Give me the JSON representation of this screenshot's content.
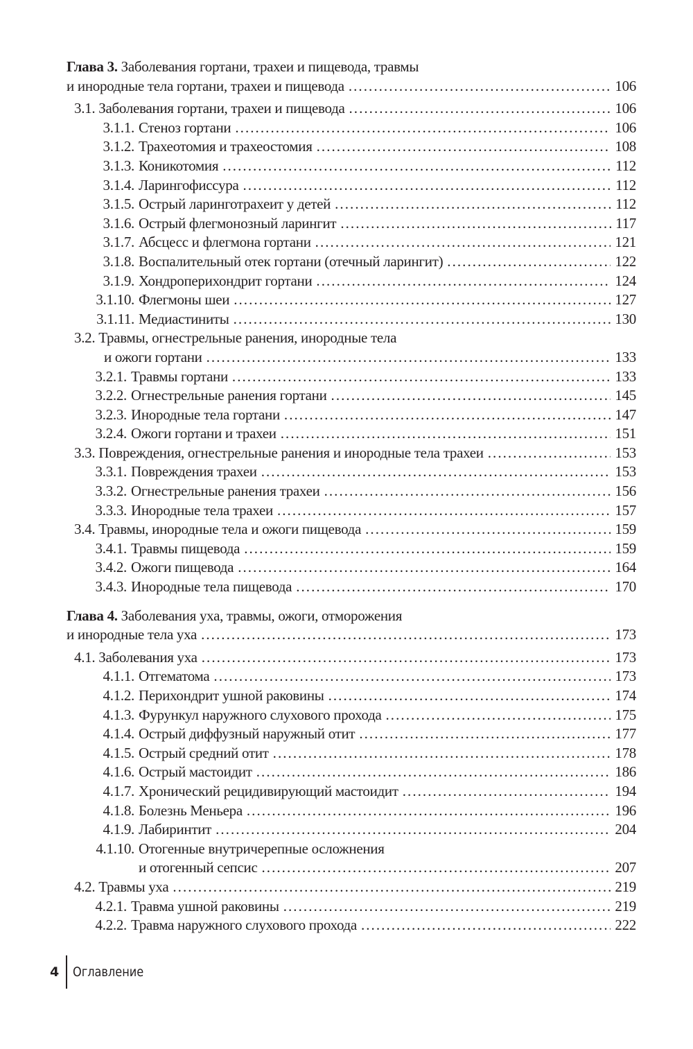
{
  "chapters": [
    {
      "label": "Глава 3.",
      "title_line1": "Заболевания гортани, трахеи и пищевода, травмы",
      "title_line2": "и инородные тела гортани, трахеи и пищевода",
      "page": "106",
      "sections": [
        {
          "num": "3.1.",
          "title": "Заболевания гортани, трахеи и пищевода",
          "page": "106",
          "items": [
            {
              "num": "3.1.1.",
              "title": "Стеноз гортани",
              "page": "106"
            },
            {
              "num": "3.1.2.",
              "title": "Трахеотомия и трахеостомия",
              "page": "108"
            },
            {
              "num": "3.1.3.",
              "title": "Коникотомия",
              "page": "112"
            },
            {
              "num": "3.1.4.",
              "title": "Ларингофиссура",
              "page": "112"
            },
            {
              "num": "3.1.5.",
              "title": "Острый ларинготрахеит у детей",
              "page": "112"
            },
            {
              "num": "3.1.6.",
              "title": "Острый флегмонозный ларингит",
              "page": "117"
            },
            {
              "num": "3.1.7.",
              "title": "Абсцесс и флегмона гортани",
              "page": "121"
            },
            {
              "num": "3.1.8.",
              "title": "Воспалительный отек гортани (отечный ларингит)",
              "page": "122"
            },
            {
              "num": "3.1.9.",
              "title": "Хондроперихондрит гортани",
              "page": "124"
            },
            {
              "num": "3.1.10.",
              "title": "Флегмоны шеи",
              "page": "127"
            },
            {
              "num": "3.1.11.",
              "title": "Медиастиниты",
              "page": "130"
            }
          ]
        },
        {
          "num": "3.2.",
          "title": "Травмы, огнестрельные ранения, инородные тела",
          "title_cont": "и ожоги гортани",
          "page": "133",
          "items": [
            {
              "num": "3.2.1.",
              "title": "Травмы гортани",
              "page": "133"
            },
            {
              "num": "3.2.2.",
              "title": "Огнестрельные ранения гортани",
              "page": "145"
            },
            {
              "num": "3.2.3.",
              "title": "Инородные тела гортани",
              "page": "147"
            },
            {
              "num": "3.2.4.",
              "title": "Ожоги гортани и трахеи",
              "page": "151"
            }
          ]
        },
        {
          "num": "3.3.",
          "title": "Повреждения, огнестрельные ранения и инородные тела трахеи",
          "page": "153",
          "items": [
            {
              "num": "3.3.1.",
              "title": "Повреждения трахеи",
              "page": "153"
            },
            {
              "num": "3.3.2.",
              "title": "Огнестрельные ранения трахеи",
              "page": "156"
            },
            {
              "num": "3.3.3.",
              "title": "Инородные тела трахеи",
              "page": "157"
            }
          ]
        },
        {
          "num": "3.4.",
          "title": "Травмы, инородные тела и ожоги пищевода",
          "page": "159",
          "items": [
            {
              "num": "3.4.1.",
              "title": "Травмы пищевода",
              "page": "159"
            },
            {
              "num": "3.4.2.",
              "title": "Ожоги пищевода",
              "page": "164"
            },
            {
              "num": "3.4.3.",
              "title": "Инородные тела пищевода",
              "page": "170"
            }
          ]
        }
      ]
    },
    {
      "label": "Глава 4.",
      "title_line1": "Заболевания уха, травмы, ожоги, отморожения",
      "title_line2": "и инородные тела уха",
      "page": "173",
      "sections": [
        {
          "num": "4.1.",
          "title": "Заболевания уха",
          "page": "173",
          "items": [
            {
              "num": "4.1.1.",
              "title": "Отгематома",
              "page": "173"
            },
            {
              "num": "4.1.2.",
              "title": "Перихондрит ушной раковины",
              "page": "174"
            },
            {
              "num": "4.1.3.",
              "title": "Фурункул наружного слухового прохода",
              "page": "175"
            },
            {
              "num": "4.1.4.",
              "title": "Острый диффузный наружный отит",
              "page": "177"
            },
            {
              "num": "4.1.5.",
              "title": "Острый средний отит",
              "page": "178"
            },
            {
              "num": "4.1.6.",
              "title": "Острый мастоидит",
              "page": "186"
            },
            {
              "num": "4.1.7.",
              "title": "Хронический рецидивирующий мастоидит",
              "page": "194"
            },
            {
              "num": "4.1.8.",
              "title": "Болезнь Меньера",
              "page": "196"
            },
            {
              "num": "4.1.9.",
              "title": "Лабиринтит",
              "page": "204"
            },
            {
              "num": "4.1.10.",
              "title": "Отогенные внутричерепные осложнения",
              "title_cont": "и отогенный сепсис",
              "page": "207"
            }
          ]
        },
        {
          "num": "4.2.",
          "title": "Травмы уха",
          "page": "219",
          "items": [
            {
              "num": "4.2.1.",
              "title": "Травма ушной раковины",
              "page": "219"
            },
            {
              "num": "4.2.2.",
              "title": "Травма наружного слухового прохода",
              "page": "222"
            }
          ]
        }
      ]
    }
  ],
  "footer": {
    "page_number": "4",
    "section_title": "Оглавление"
  }
}
